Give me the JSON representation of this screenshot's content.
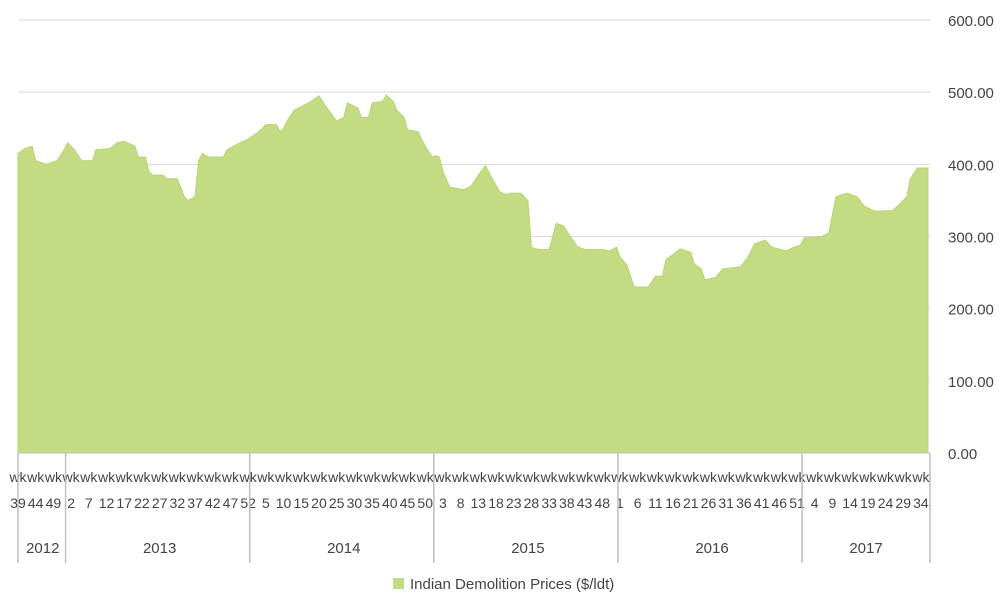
{
  "chart_data": {
    "type": "area",
    "series": [
      {
        "name": "Indian Demolition Prices ($/ldt)",
        "color": "#c3dc84",
        "points": [
          [
            2012,
            39,
            415
          ],
          [
            2012,
            41,
            422
          ],
          [
            2012,
            43,
            425
          ],
          [
            2012,
            44,
            405
          ],
          [
            2012,
            47,
            400
          ],
          [
            2012,
            50,
            405
          ],
          [
            2012,
            52,
            420
          ],
          [
            2013,
            1,
            430
          ],
          [
            2013,
            3,
            420
          ],
          [
            2013,
            5,
            405
          ],
          [
            2013,
            8,
            405
          ],
          [
            2013,
            9,
            420
          ],
          [
            2013,
            13,
            422
          ],
          [
            2013,
            15,
            430
          ],
          [
            2013,
            17,
            432
          ],
          [
            2013,
            20,
            425
          ],
          [
            2013,
            21,
            410
          ],
          [
            2013,
            23,
            410
          ],
          [
            2013,
            24,
            390
          ],
          [
            2013,
            25,
            385
          ],
          [
            2013,
            28,
            385
          ],
          [
            2013,
            29,
            380
          ],
          [
            2013,
            32,
            380
          ],
          [
            2013,
            34,
            355
          ],
          [
            2013,
            35,
            350
          ],
          [
            2013,
            37,
            355
          ],
          [
            2013,
            38,
            405
          ],
          [
            2013,
            39,
            415
          ],
          [
            2013,
            41,
            410
          ],
          [
            2013,
            45,
            410
          ],
          [
            2013,
            46,
            420
          ],
          [
            2013,
            49,
            428
          ],
          [
            2013,
            52,
            435
          ],
          [
            2014,
            3,
            445
          ],
          [
            2014,
            5,
            455
          ],
          [
            2014,
            8,
            455
          ],
          [
            2014,
            9,
            445
          ],
          [
            2014,
            10,
            450
          ],
          [
            2014,
            11,
            460
          ],
          [
            2014,
            13,
            475
          ],
          [
            2014,
            17,
            485
          ],
          [
            2014,
            20,
            495
          ],
          [
            2014,
            22,
            480
          ],
          [
            2014,
            25,
            460
          ],
          [
            2014,
            27,
            465
          ],
          [
            2014,
            28,
            485
          ],
          [
            2014,
            31,
            478
          ],
          [
            2014,
            32,
            465
          ],
          [
            2014,
            34,
            465
          ],
          [
            2014,
            35,
            485
          ],
          [
            2014,
            38,
            487
          ],
          [
            2014,
            39,
            496
          ],
          [
            2014,
            41,
            487
          ],
          [
            2014,
            42,
            475
          ],
          [
            2014,
            44,
            465
          ],
          [
            2014,
            45,
            448
          ],
          [
            2014,
            48,
            445
          ],
          [
            2014,
            50,
            425
          ],
          [
            2014,
            52,
            410
          ],
          [
            2015,
            1,
            412
          ],
          [
            2015,
            2,
            410
          ],
          [
            2015,
            3,
            390
          ],
          [
            2015,
            5,
            368
          ],
          [
            2015,
            9,
            365
          ],
          [
            2015,
            11,
            370
          ],
          [
            2015,
            13,
            385
          ],
          [
            2015,
            15,
            398
          ],
          [
            2015,
            17,
            380
          ],
          [
            2015,
            19,
            362
          ],
          [
            2015,
            21,
            358
          ],
          [
            2015,
            22,
            360
          ],
          [
            2015,
            25,
            360
          ],
          [
            2015,
            27,
            350
          ],
          [
            2015,
            28,
            285
          ],
          [
            2015,
            30,
            282
          ],
          [
            2015,
            33,
            282
          ],
          [
            2015,
            34,
            300
          ],
          [
            2015,
            35,
            318
          ],
          [
            2015,
            37,
            315
          ],
          [
            2015,
            39,
            300
          ],
          [
            2015,
            41,
            286
          ],
          [
            2015,
            43,
            282
          ],
          [
            2015,
            48,
            282
          ],
          [
            2015,
            50,
            280
          ],
          [
            2015,
            52,
            285
          ],
          [
            2016,
            1,
            272
          ],
          [
            2016,
            3,
            260
          ],
          [
            2016,
            5,
            230
          ],
          [
            2016,
            9,
            230
          ],
          [
            2016,
            11,
            245
          ],
          [
            2016,
            13,
            245
          ],
          [
            2016,
            14,
            268
          ],
          [
            2016,
            16,
            275
          ],
          [
            2016,
            18,
            283
          ],
          [
            2016,
            21,
            278
          ],
          [
            2016,
            22,
            262
          ],
          [
            2016,
            24,
            255
          ],
          [
            2016,
            25,
            240
          ],
          [
            2016,
            28,
            243
          ],
          [
            2016,
            30,
            255
          ],
          [
            2016,
            35,
            258
          ],
          [
            2016,
            37,
            270
          ],
          [
            2016,
            39,
            290
          ],
          [
            2016,
            42,
            295
          ],
          [
            2016,
            44,
            285
          ],
          [
            2016,
            48,
            280
          ],
          [
            2016,
            50,
            285
          ],
          [
            2016,
            52,
            288
          ],
          [
            2017,
            1,
            298
          ],
          [
            2017,
            6,
            300
          ],
          [
            2017,
            8,
            305
          ],
          [
            2017,
            9,
            330
          ],
          [
            2017,
            10,
            355
          ],
          [
            2017,
            13,
            360
          ],
          [
            2017,
            16,
            355
          ],
          [
            2017,
            18,
            342
          ],
          [
            2017,
            21,
            335
          ],
          [
            2017,
            26,
            336
          ],
          [
            2017,
            28,
            345
          ],
          [
            2017,
            30,
            355
          ],
          [
            2017,
            31,
            380
          ],
          [
            2017,
            33,
            395
          ],
          [
            2017,
            36,
            395
          ]
        ]
      }
    ],
    "y_ticks": [
      "600.00",
      "500.00",
      "400.00",
      "300.00",
      "200.00",
      "100.00",
      "0.00"
    ],
    "ylim": [
      0,
      600
    ],
    "grid": true,
    "legend_position": "bottom",
    "week_prefix": "wk",
    "years": [
      {
        "year": "2012",
        "weeks": [
          "39",
          "44",
          "49"
        ]
      },
      {
        "year": "2013",
        "weeks": [
          "2",
          "7",
          "12",
          "17",
          "22",
          "27",
          "32",
          "37",
          "42",
          "47",
          "52"
        ]
      },
      {
        "year": "2014",
        "weeks": [
          "5",
          "10",
          "15",
          "20",
          "25",
          "30",
          "35",
          "40",
          "45",
          "50"
        ]
      },
      {
        "year": "2015",
        "weeks": [
          "3",
          "8",
          "13",
          "18",
          "23",
          "28",
          "33",
          "38",
          "43",
          "48"
        ]
      },
      {
        "year": "2016",
        "weeks": [
          "1",
          "6",
          "11",
          "16",
          "21",
          "26",
          "31",
          "36",
          "41",
          "46",
          "51"
        ]
      },
      {
        "year": "2017",
        "weeks": [
          "4",
          "9",
          "14",
          "19",
          "24",
          "29",
          "34"
        ]
      }
    ]
  }
}
